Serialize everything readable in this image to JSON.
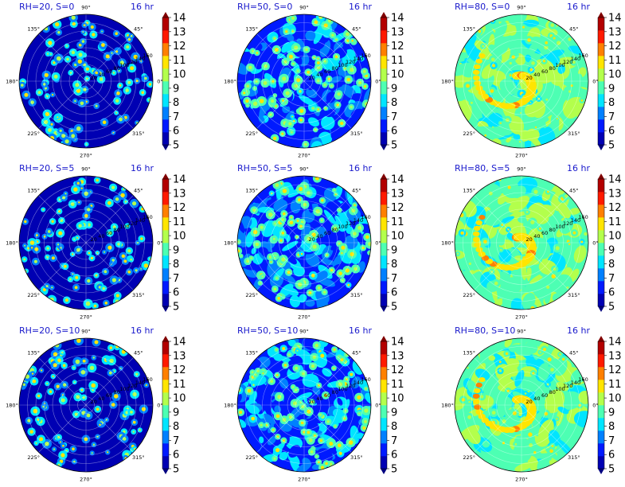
{
  "chart_data": {
    "type": "polar_contourf",
    "colormap": "jet",
    "levels": [
      5,
      6,
      7,
      8,
      9,
      10,
      11,
      12,
      13,
      14
    ],
    "colorbar": {
      "ticks": [
        "14",
        "13",
        "12",
        "11",
        "10",
        "9",
        "8",
        "7",
        "6",
        "5"
      ],
      "range": [
        5,
        14
      ],
      "extend": "both"
    },
    "angle_ticks": [
      {
        "deg": 90,
        "label": "90°"
      },
      {
        "deg": 45,
        "label": "45°"
      },
      {
        "deg": 0,
        "label": "0°"
      },
      {
        "deg": 315,
        "label": "315°"
      },
      {
        "deg": 270,
        "label": "270°"
      },
      {
        "deg": 225,
        "label": "225°"
      },
      {
        "deg": 180,
        "label": "180°"
      },
      {
        "deg": 135,
        "label": "135°"
      }
    ],
    "radial_ticks": [
      {
        "value": 20,
        "label": "20"
      },
      {
        "value": 40,
        "label": "40"
      },
      {
        "value": 60,
        "label": "60"
      },
      {
        "value": 80,
        "label": "80"
      },
      {
        "value": 100,
        "label": "100"
      },
      {
        "value": 120,
        "label": "120"
      },
      {
        "value": 140,
        "label": "140"
      },
      {
        "value": 160,
        "label": "160"
      }
    ],
    "r_max": 160,
    "panels": [
      {
        "title": "RH=20, S=0",
        "time": "16 hr",
        "rh": 20,
        "s": 0,
        "background_level": 5.0
      },
      {
        "title": "RH=50, S=0",
        "time": "16 hr",
        "rh": 50,
        "s": 0,
        "background_level": 6.8
      },
      {
        "title": "RH=80, S=0",
        "time": "16 hr",
        "rh": 80,
        "s": 0,
        "background_level": 9.2
      },
      {
        "title": "RH=20, S=5",
        "time": "16 hr",
        "rh": 20,
        "s": 5,
        "background_level": 5.0
      },
      {
        "title": "RH=50, S=5",
        "time": "16 hr",
        "rh": 50,
        "s": 5,
        "background_level": 6.8
      },
      {
        "title": "RH=80, S=5",
        "time": "16 hr",
        "rh": 80,
        "s": 5,
        "background_level": 9.2
      },
      {
        "title": "RH=20, S=10",
        "time": "16 hr",
        "rh": 20,
        "s": 10,
        "background_level": 5.0
      },
      {
        "title": "RH=50, S=10",
        "time": "16 hr",
        "rh": 50,
        "s": 10,
        "background_level": 6.8
      },
      {
        "title": "RH=80, S=10",
        "time": "16 hr",
        "rh": 80,
        "s": 10,
        "background_level": 9.2
      }
    ]
  }
}
